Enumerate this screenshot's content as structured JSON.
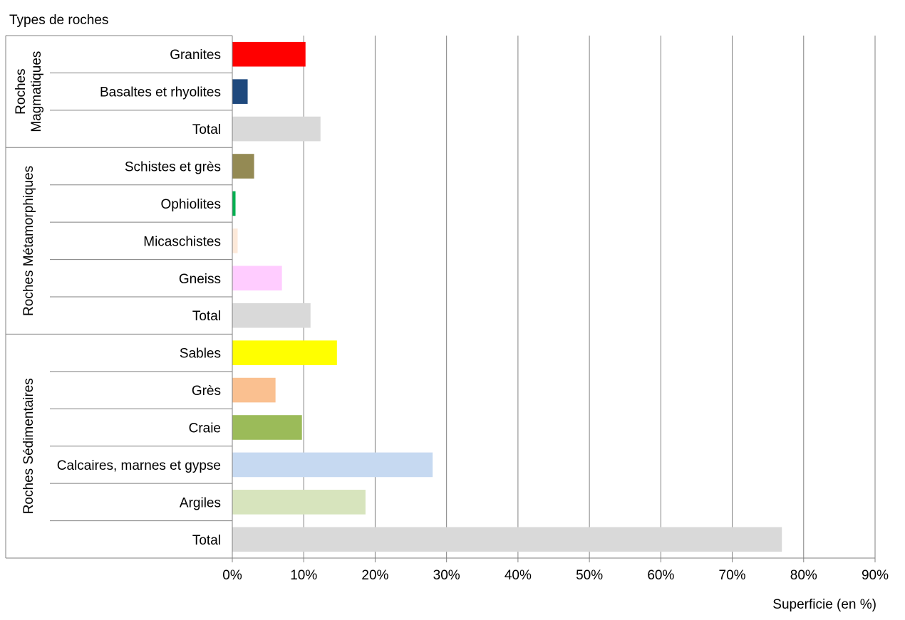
{
  "chart_data": {
    "type": "bar",
    "orientation": "horizontal",
    "axis_title_categories": "Types de roches",
    "xlabel": "Superficie (en %)",
    "xlim": [
      0,
      90
    ],
    "ticks": [
      "0%",
      "10%",
      "20%",
      "30%",
      "40%",
      "50%",
      "60%",
      "70%",
      "80%",
      "90%"
    ],
    "grid": true,
    "groups": [
      {
        "name": "Roches Magmatiques",
        "name_lines": [
          "Roches",
          "Magmatiques"
        ],
        "items": [
          {
            "label": "Granites",
            "value": 10.2,
            "color": "#FF0000"
          },
          {
            "label": "Basaltes et rhyolites",
            "value": 2.1,
            "color": "#1F497D"
          },
          {
            "label": "Total",
            "value": 12.3,
            "color": "#D9D9D9"
          }
        ]
      },
      {
        "name": "Roches Métamorphiques",
        "name_lines": [
          "Roches Métamorphiques"
        ],
        "items": [
          {
            "label": "Schistes et grès",
            "value": 3.0,
            "color": "#948A54"
          },
          {
            "label": "Ophiolites",
            "value": 0.4,
            "color": "#00B050"
          },
          {
            "label": "Micaschistes",
            "value": 0.7,
            "color": "#FDE9D9"
          },
          {
            "label": "Gneiss",
            "value": 6.9,
            "color": "#FFCCFF"
          },
          {
            "label": "Total",
            "value": 10.9,
            "color": "#D9D9D9"
          }
        ]
      },
      {
        "name": "Roches Sédimentaires",
        "name_lines": [
          "Roches Sédimentaires"
        ],
        "items": [
          {
            "label": "Sables",
            "value": 14.6,
            "color": "#FFFF00"
          },
          {
            "label": "Grès",
            "value": 6.0,
            "color": "#FAC090"
          },
          {
            "label": "Craie",
            "value": 9.7,
            "color": "#9BBB59"
          },
          {
            "label": "Calcaires, marnes et gypse",
            "value": 28.0,
            "color": "#C6D9F1"
          },
          {
            "label": "Argiles",
            "value": 18.6,
            "color": "#D7E4BD"
          },
          {
            "label": "Total",
            "value": 76.9,
            "color": "#D9D9D9"
          }
        ]
      }
    ]
  }
}
